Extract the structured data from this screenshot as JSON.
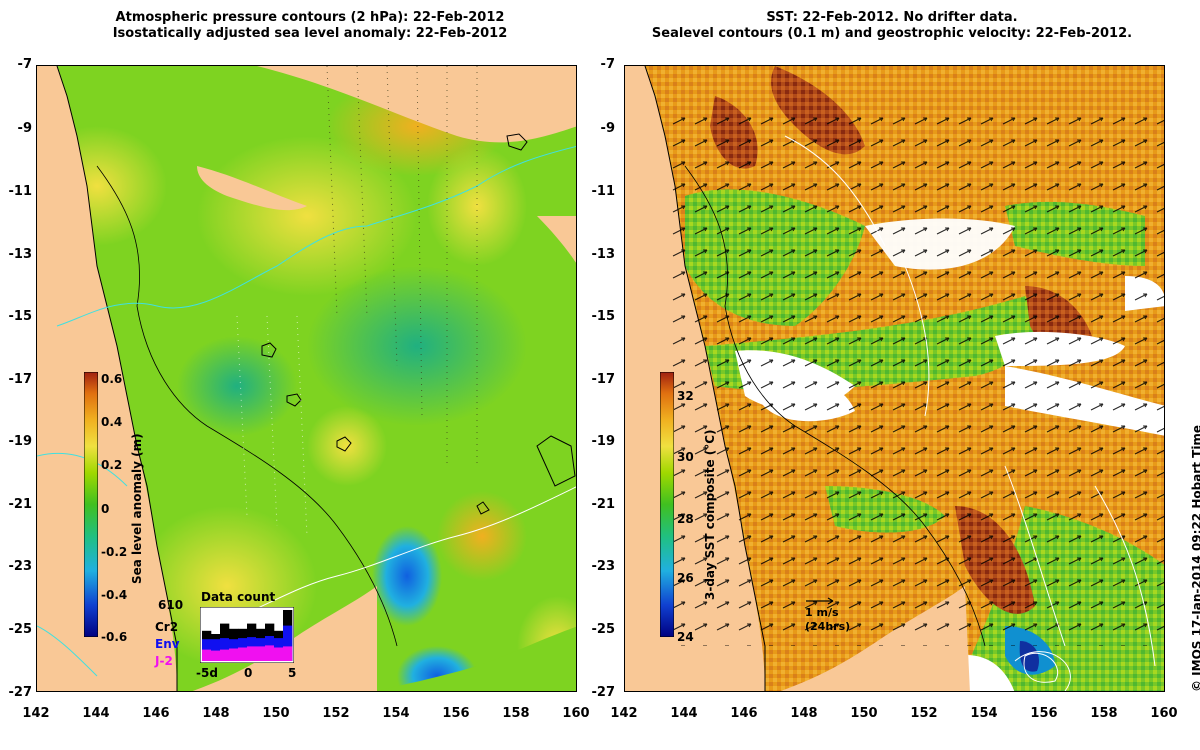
{
  "left_panel": {
    "title_line1": "Atmospheric pressure contours (2 hPa): 22-Feb-2012",
    "title_line2": "Isostatically adjusted sea level anomaly: 22-Feb-2012",
    "colorbar": {
      "label": "Sea level anomaly (m)",
      "ticks": [
        "0.6",
        "0.4",
        "0.2",
        "0",
        "-0.2",
        "-0.4",
        "-0.6"
      ],
      "colors": [
        "#000080",
        "#1040d0",
        "#20b0e0",
        "#20c080",
        "#40c020",
        "#a0d800",
        "#f0e040",
        "#f0b020",
        "#e07010",
        "#a02010"
      ]
    },
    "data_count": {
      "title": "Data count",
      "max_value": "610",
      "legend": [
        {
          "name": "Cr2",
          "color": "#000000"
        },
        {
          "name": "Env",
          "color": "#1010f0"
        },
        {
          "name": "J-2",
          "color": "#f010f0"
        }
      ],
      "x_ticks": [
        "-5d",
        "0",
        "5"
      ],
      "bars": [
        {
          "total": 0.58,
          "env": 0.42,
          "j2": 0.22
        },
        {
          "total": 0.52,
          "env": 0.42,
          "j2": 0.2
        },
        {
          "total": 0.72,
          "env": 0.44,
          "j2": 0.22
        },
        {
          "total": 0.62,
          "env": 0.42,
          "j2": 0.24
        },
        {
          "total": 0.62,
          "env": 0.44,
          "j2": 0.26
        },
        {
          "total": 0.72,
          "env": 0.46,
          "j2": 0.28
        },
        {
          "total": 0.62,
          "env": 0.44,
          "j2": 0.28
        },
        {
          "total": 0.72,
          "env": 0.48,
          "j2": 0.3
        },
        {
          "total": 0.58,
          "env": 0.44,
          "j2": 0.26
        },
        {
          "total": 0.98,
          "env": 0.68,
          "j2": 0.28
        }
      ]
    }
  },
  "right_panel": {
    "title_line1": "SST: 22-Feb-2012. No drifter data.",
    "title_line2": "Sealevel contours (0.1 m) and geostrophic velocity: 22-Feb-2012.",
    "colorbar": {
      "label": "3-day SST composite (°C)",
      "ticks": [
        "32",
        "30",
        "28",
        "26",
        "24"
      ],
      "colors": [
        "#000080",
        "#1040d0",
        "#20b0e0",
        "#20c080",
        "#40c020",
        "#a0d800",
        "#f0e040",
        "#f0b020",
        "#e07010",
        "#a02010"
      ]
    },
    "velocity_legend": {
      "label": "1 m/s",
      "sublabel": "(24hrs)"
    }
  },
  "axes": {
    "lat_ticks": [
      "-7",
      "-9",
      "-11",
      "-13",
      "-15",
      "-17",
      "-19",
      "-21",
      "-23",
      "-25",
      "-27"
    ],
    "lon_ticks": [
      "142",
      "144",
      "146",
      "148",
      "150",
      "152",
      "154",
      "156",
      "158",
      "160"
    ]
  },
  "credit": "© IMOS 17-Jan-2014 09:22 Hobart Time",
  "colors": {
    "land": "#f9c896",
    "sla_base": "#7ed321",
    "sst_base": "#e08a10",
    "contour": "#000000",
    "coast_cyan": "#40e0e0"
  }
}
